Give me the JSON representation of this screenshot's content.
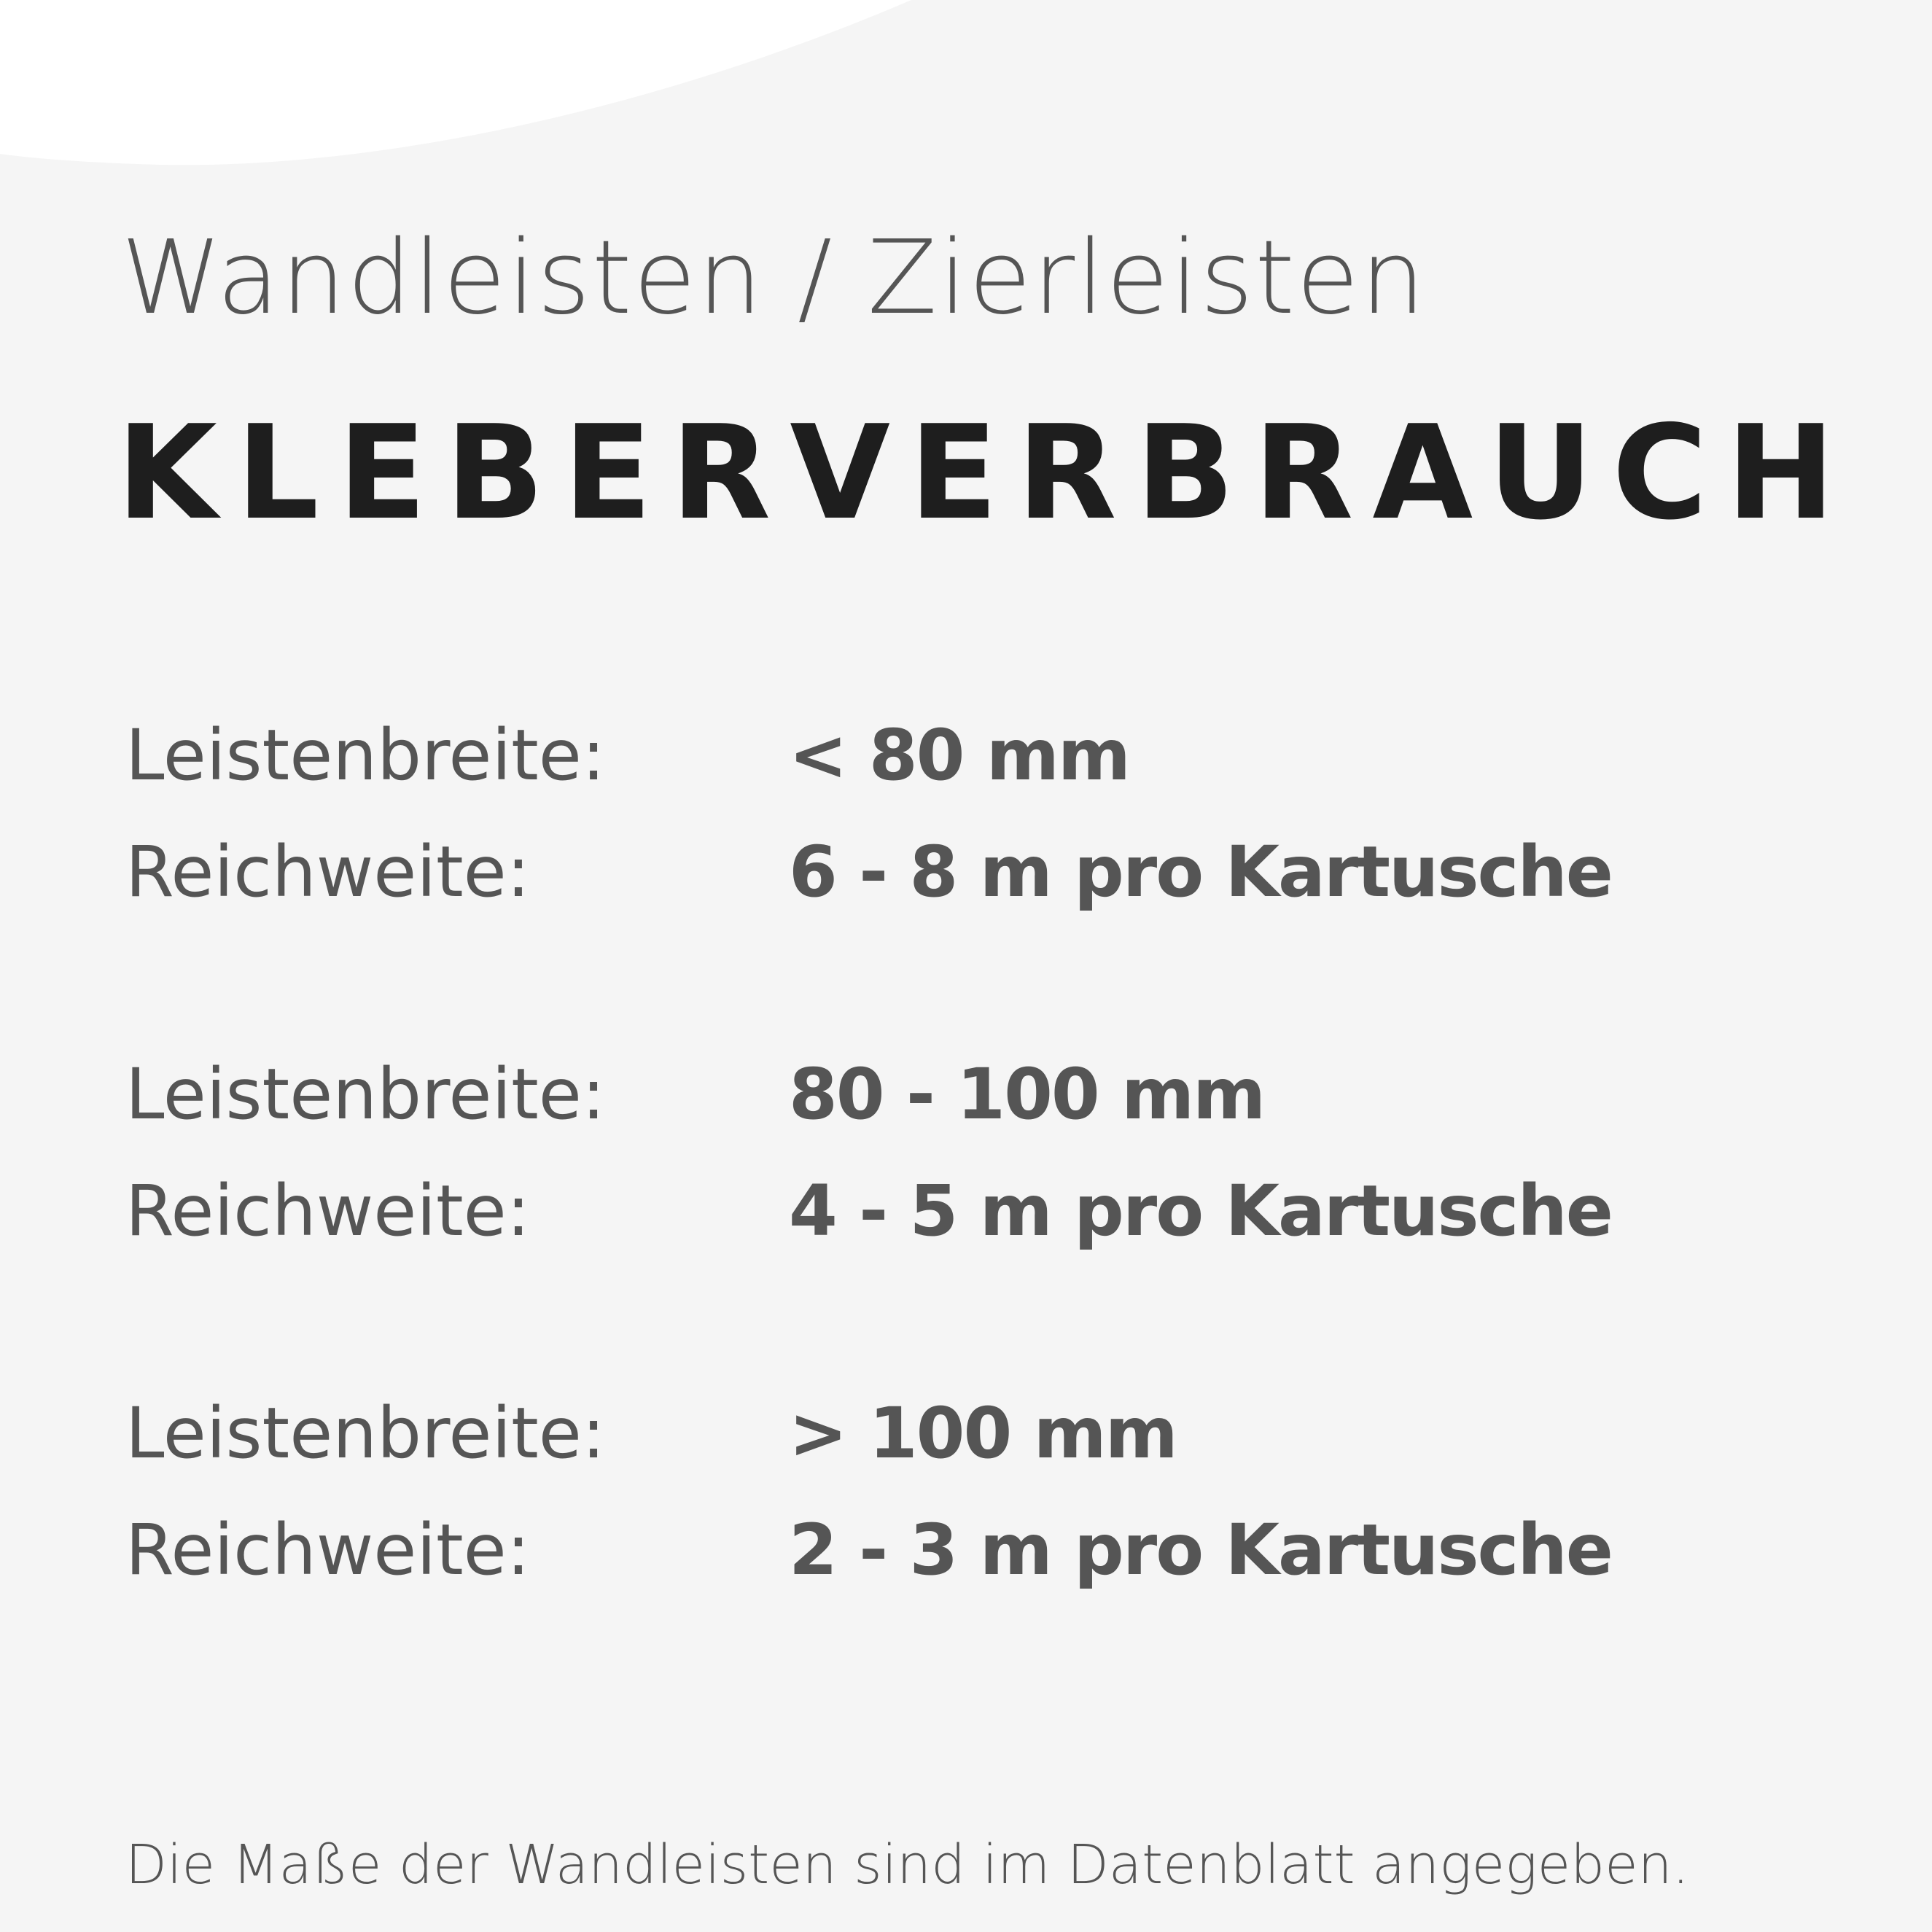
{
  "subtitle": "Wandleisten / Zierleisten",
  "title": "KLEBERVERBRAUCH",
  "groups": [
    {
      "width_label": "Leistenbreite:",
      "width_value": "< 80 mm",
      "range_label": "Reichweite:",
      "range_value": "6 - 8 m pro Kartusche"
    },
    {
      "width_label": "Leistenbreite:",
      "width_value": "80 - 100 mm",
      "range_label": "Reichweite:",
      "range_value": "4 - 5 m pro Kartusche"
    },
    {
      "width_label": "Leistenbreite:",
      "width_value": "> 100 mm",
      "range_label": "Reichweite:",
      "range_value": "2 - 3 m pro Kartusche"
    }
  ],
  "footer": "Die Maße der Wandleisten sind im Datenblatt angegeben.",
  "colors": {
    "background": "#f5f5f5",
    "title": "#1e1e1e",
    "text": "#555555",
    "curve": "#ffffff"
  }
}
